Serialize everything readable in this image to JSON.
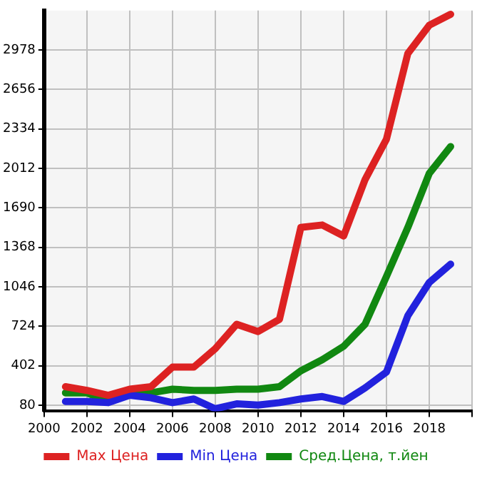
{
  "chart_data": {
    "type": "line",
    "x": [
      2001,
      2002,
      2003,
      2004,
      2005,
      2006,
      2007,
      2008,
      2009,
      2010,
      2011,
      2012,
      2013,
      2014,
      2015,
      2016,
      2017,
      2018,
      2019
    ],
    "series": [
      {
        "name": "Max Цена",
        "color": "#dd2222",
        "values": [
          230,
          200,
          160,
          210,
          230,
          390,
          390,
          540,
          740,
          680,
          780,
          1530,
          1550,
          1460,
          1920,
          2250,
          2950,
          3180,
          3270
        ]
      },
      {
        "name": "Min Цена",
        "color": "#2222dd",
        "values": [
          110,
          110,
          100,
          160,
          140,
          100,
          130,
          50,
          90,
          80,
          100,
          130,
          150,
          110,
          220,
          350,
          810,
          1080,
          1230
        ]
      },
      {
        "name": "Сред.Цена, т.йен",
        "color": "#118811",
        "values": [
          180,
          180,
          110,
          200,
          180,
          210,
          200,
          200,
          210,
          210,
          230,
          360,
          450,
          560,
          740,
          1130,
          1530,
          1970,
          2190
        ]
      }
    ],
    "xlim": [
      2000,
      2020
    ],
    "xticks": [
      2000,
      2002,
      2004,
      2006,
      2008,
      2010,
      2012,
      2014,
      2016,
      2018,
      {
        "value": 2020,
        "label": null
      }
    ],
    "ylim": [
      30,
      3300
    ],
    "yticks": [
      80,
      402,
      724,
      1046,
      1368,
      1690,
      2012,
      2334,
      2656,
      2978
    ],
    "grid": true,
    "legend": "bottom",
    "marker": "none",
    "line_style": "solid"
  }
}
